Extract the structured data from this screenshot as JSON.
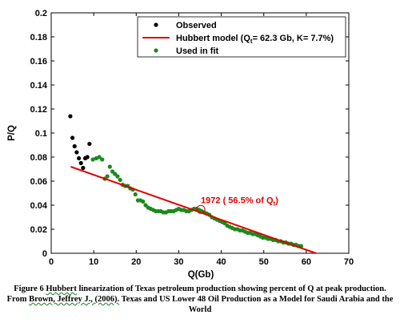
{
  "chart_data": {
    "type": "scatter",
    "xlabel": "Q(Gb)",
    "ylabel": "P/Q",
    "xlim": [
      0,
      70
    ],
    "ylim": [
      0,
      0.2
    ],
    "xticks": [
      "0",
      "10",
      "20",
      "30",
      "40",
      "50",
      "60",
      "70"
    ],
    "yticks": [
      "0",
      "0.02",
      "0.04",
      "0.06",
      "0.08",
      "0.1",
      "0.12",
      "0.14",
      "0.16",
      "0.18",
      "0.2"
    ],
    "grid": false,
    "legend_position": "top-right",
    "legend": {
      "observed": "Observed",
      "model_prefix": "Hubbert model (Q",
      "model_sub": "t",
      "model_suffix": "=  62.3 Gb, K=  7.7%)",
      "used": "Used in fit"
    },
    "colors": {
      "observed": "#000000",
      "model": "#e00000",
      "used": "#1a8a1a"
    },
    "series": [
      {
        "name": "Observed",
        "x": [
          4.5,
          5.0,
          5.5,
          6.0,
          6.5,
          7.0,
          7.5,
          8.0,
          8.5,
          9.0
        ],
        "y": [
          0.114,
          0.096,
          0.089,
          0.084,
          0.079,
          0.075,
          0.071,
          0.079,
          0.08,
          0.091
        ]
      },
      {
        "name": "Hubbert model",
        "x": [
          4.6,
          62.3
        ],
        "y": [
          0.072,
          0.0
        ]
      },
      {
        "name": "Used in fit",
        "x": [
          9.8,
          10.6,
          11.3,
          12.0,
          12.6,
          13.2,
          13.8,
          14.4,
          15.0,
          15.6,
          16.2,
          16.8,
          17.4,
          18.0,
          18.6,
          19.2,
          19.8,
          20.4,
          21.0,
          21.6,
          22.2,
          22.8,
          23.4,
          24.0,
          24.6,
          25.2,
          25.8,
          26.4,
          27.0,
          27.6,
          28.2,
          28.8,
          29.4,
          30.0,
          30.6,
          31.2,
          31.8,
          32.4,
          33.0,
          33.6,
          34.2,
          34.8,
          35.4,
          36.0,
          36.6,
          37.2,
          37.8,
          38.4,
          39.0,
          39.6,
          40.2,
          40.8,
          41.4,
          42.0,
          42.6,
          43.2,
          43.8,
          44.4,
          45.0,
          45.6,
          46.2,
          46.8,
          47.4,
          48.0,
          48.6,
          49.2,
          49.8,
          50.4,
          51.0,
          51.6,
          52.2,
          52.8,
          53.4,
          54.0,
          54.6,
          55.2,
          55.8,
          56.4,
          57.0,
          57.6,
          58.2,
          58.8
        ],
        "y": [
          0.078,
          0.079,
          0.08,
          0.078,
          0.062,
          0.064,
          0.072,
          0.068,
          0.066,
          0.064,
          0.061,
          0.057,
          0.056,
          0.056,
          0.054,
          0.053,
          0.049,
          0.044,
          0.044,
          0.043,
          0.04,
          0.038,
          0.037,
          0.036,
          0.035,
          0.035,
          0.035,
          0.034,
          0.034,
          0.035,
          0.035,
          0.035,
          0.036,
          0.037,
          0.036,
          0.036,
          0.035,
          0.035,
          0.036,
          0.037,
          0.037,
          0.036,
          0.035,
          0.034,
          0.033,
          0.032,
          0.03,
          0.029,
          0.028,
          0.027,
          0.026,
          0.025,
          0.023,
          0.022,
          0.021,
          0.02,
          0.02,
          0.019,
          0.019,
          0.018,
          0.017,
          0.017,
          0.016,
          0.016,
          0.015,
          0.014,
          0.013,
          0.013,
          0.012,
          0.012,
          0.011,
          0.011,
          0.01,
          0.01,
          0.009,
          0.009,
          0.008,
          0.008,
          0.007,
          0.007,
          0.006,
          0.006
        ]
      }
    ],
    "annotation": {
      "prefix": "1972 (  56.5% of Q",
      "sub": "t",
      "suffix": ")",
      "point_x": 35.2,
      "point_y": 0.0365
    }
  },
  "caption": {
    "line1_pre": "Figure 6 ",
    "line1_ul": "Hubbert",
    "line1_post": " linearization of Texas petroleum production showing percent of Q at peak production.",
    "line2_pre": "From ",
    "line2_ul": "Brown, Jeffrey J., (2006).",
    "line2_post": " Texas and US Lower 48 Oil Production as a Model for Saudi Arabia and the",
    "line3": "World"
  }
}
